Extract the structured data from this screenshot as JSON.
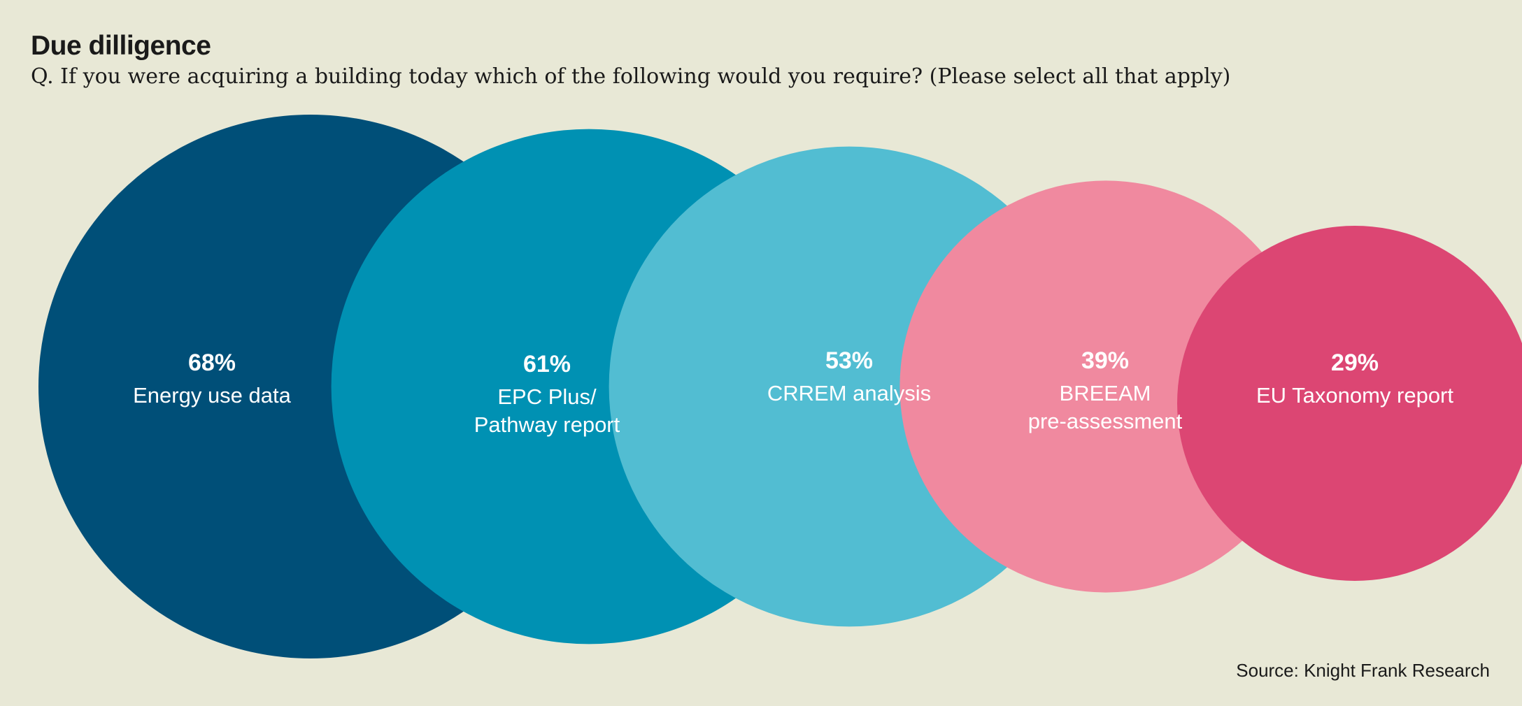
{
  "title": "Due dilligence",
  "subtitle": "Q. If you were acquiring a building today which of the following would you require? (Please select all that apply)",
  "source": "Source: Knight Frank Research",
  "colors": {
    "background": "#e8e8d6",
    "energy": "#004f78",
    "epc": "#0091b3",
    "crrem": "#52bdd2",
    "breeam": "#f0899f",
    "eu_taxonomy": "#dc4673"
  },
  "chart_data": {
    "type": "bubble",
    "categories": [
      "Energy use data",
      "EPC Plus/ Pathway report",
      "CRREM analysis",
      "BREEAM pre-assessment",
      "EU Taxonomy report"
    ],
    "values": [
      68,
      61,
      53,
      39,
      29
    ],
    "unit": "%",
    "items": [
      {
        "value": 68,
        "percent_label": "68%",
        "label_lines": [
          "Energy use data"
        ]
      },
      {
        "value": 61,
        "percent_label": "61%",
        "label_lines": [
          "EPC Plus/",
          "Pathway report"
        ]
      },
      {
        "value": 53,
        "percent_label": "53%",
        "label_lines": [
          "CRREM analysis"
        ]
      },
      {
        "value": 39,
        "percent_label": "39%",
        "label_lines": [
          "BREEAM",
          "pre-assessment"
        ]
      },
      {
        "value": 29,
        "percent_label": "29%",
        "label_lines": [
          "EU Taxonomy report"
        ]
      }
    ]
  }
}
